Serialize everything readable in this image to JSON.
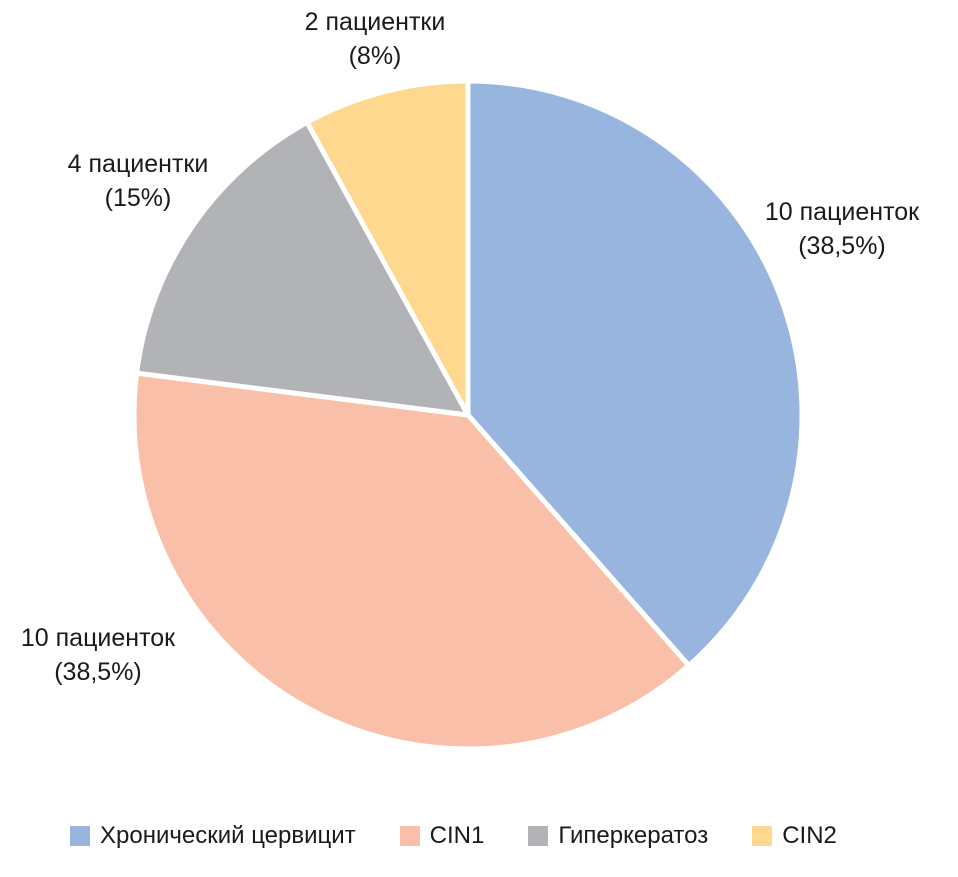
{
  "chart_data": {
    "type": "pie",
    "title": "",
    "series": [
      {
        "name": "Хронический цервицит",
        "count": 10,
        "percent": 38.5,
        "label_line1": "10 пациенток",
        "label_line2": "(38,5%)",
        "color": "#97B5DF"
      },
      {
        "name": "CIN1",
        "count": 10,
        "percent": 38.5,
        "label_line1": "10 пациенток",
        "label_line2": "(38,5%)",
        "color": "#F9BFA9"
      },
      {
        "name": "Гиперкератоз",
        "count": 4,
        "percent": 15,
        "label_line1": "4 пациентки",
        "label_line2": "(15%)",
        "color": "#B2B3B6"
      },
      {
        "name": "CIN2",
        "count": 2,
        "percent": 8,
        "label_line1": "2 пациентки",
        "label_line2": "(8%)",
        "color": "#FED88F"
      }
    ],
    "start_angle": "12 o'clock",
    "direction": "clockwise",
    "legend_position": "bottom"
  }
}
